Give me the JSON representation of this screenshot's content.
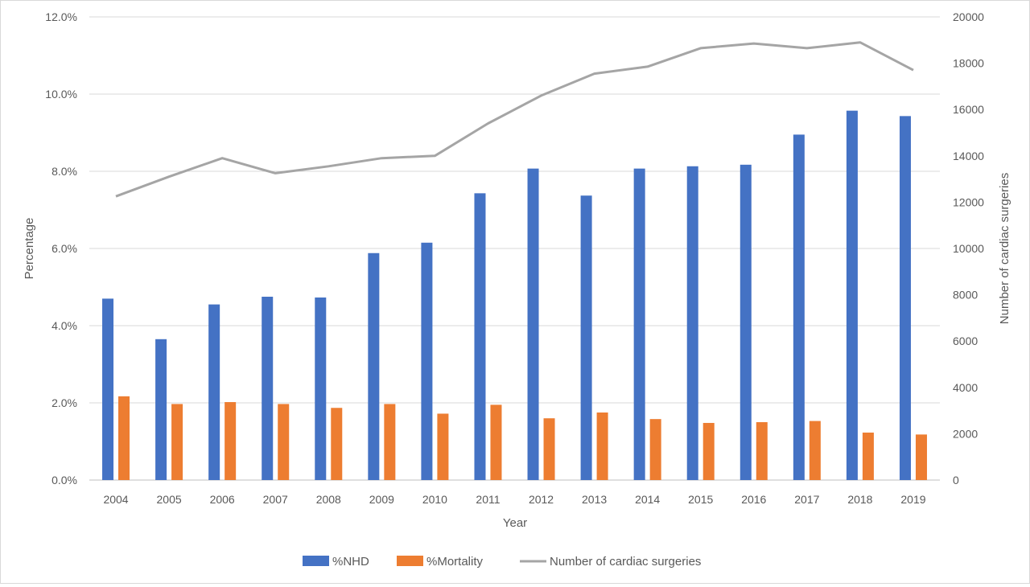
{
  "chart_data": {
    "type": "bar",
    "title": "",
    "xlabel": "Year",
    "ylabel": "Percentage",
    "y2label": "Number of cardiac surgeries",
    "categories": [
      "2004",
      "2005",
      "2006",
      "2007",
      "2008",
      "2009",
      "2010",
      "2011",
      "2012",
      "2013",
      "2014",
      "2015",
      "2016",
      "2017",
      "2018",
      "2019"
    ],
    "ylim": [
      0,
      12
    ],
    "y_ticks": [
      "0.0%",
      "2.0%",
      "4.0%",
      "6.0%",
      "8.0%",
      "10.0%",
      "12.0%"
    ],
    "y2lim": [
      0,
      20000
    ],
    "y2_ticks": [
      "0",
      "2000",
      "4000",
      "6000",
      "8000",
      "10000",
      "12000",
      "14000",
      "16000",
      "18000",
      "20000"
    ],
    "grid": true,
    "legend_position": "bottom",
    "series": [
      {
        "name": "%NHD",
        "type": "bar",
        "axis": "left",
        "color": "#4472c4",
        "values": [
          4.7,
          3.65,
          4.55,
          4.75,
          4.73,
          5.88,
          6.15,
          7.43,
          8.07,
          7.37,
          8.07,
          8.13,
          8.17,
          8.95,
          9.57,
          9.43
        ]
      },
      {
        "name": "%Mortality",
        "type": "bar",
        "axis": "left",
        "color": "#ed7d31",
        "values": [
          2.17,
          1.97,
          2.02,
          1.97,
          1.87,
          1.97,
          1.72,
          1.95,
          1.6,
          1.75,
          1.58,
          1.48,
          1.5,
          1.53,
          1.23,
          1.18
        ]
      },
      {
        "name": "Number of cardiac surgeries",
        "type": "line",
        "axis": "right",
        "color": "#a5a5a5",
        "values": [
          12250,
          13100,
          13900,
          13250,
          13550,
          13900,
          14000,
          15400,
          16600,
          17550,
          17850,
          18650,
          18850,
          18650,
          18900,
          17700
        ]
      }
    ]
  }
}
